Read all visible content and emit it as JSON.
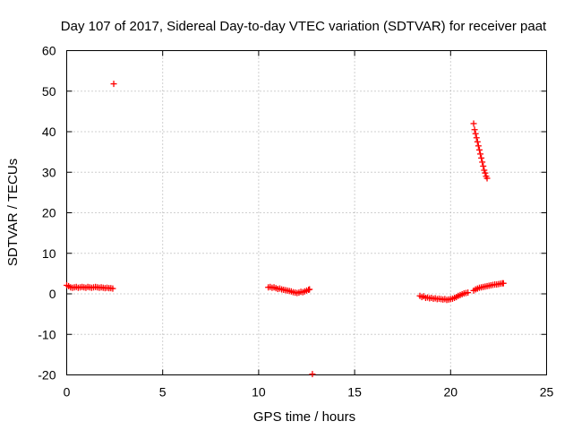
{
  "chart_data": {
    "type": "scatter",
    "title": "Day 107 of 2017, Sidereal Day-to-day VTEC variation (SDTVAR) for receiver paat",
    "xlabel": "GPS time / hours",
    "ylabel": "SDTVAR / TECUs",
    "xlim": [
      0,
      25
    ],
    "ylim": [
      -20,
      60
    ],
    "xticks": [
      "0",
      "5",
      "10",
      "15",
      "20",
      "25"
    ],
    "yticks": [
      "-20",
      "-10",
      "0",
      "10",
      "20",
      "30",
      "40",
      "50",
      "60"
    ],
    "grid": true,
    "marker": "plus",
    "colors": {
      "series": "#ff0000"
    },
    "series": [
      {
        "values": [
          [
            0.0,
            2.1
          ],
          [
            0.1,
            1.9
          ],
          [
            0.2,
            1.6
          ],
          [
            0.3,
            1.5
          ],
          [
            0.4,
            1.6
          ],
          [
            0.5,
            1.7
          ],
          [
            0.6,
            1.5
          ],
          [
            0.7,
            1.6
          ],
          [
            0.8,
            1.7
          ],
          [
            0.9,
            1.6
          ],
          [
            1.0,
            1.5
          ],
          [
            1.1,
            1.7
          ],
          [
            1.2,
            1.6
          ],
          [
            1.3,
            1.5
          ],
          [
            1.4,
            1.6
          ],
          [
            1.5,
            1.7
          ],
          [
            1.6,
            1.6
          ],
          [
            1.7,
            1.5
          ],
          [
            1.8,
            1.6
          ],
          [
            1.9,
            1.5
          ],
          [
            2.0,
            1.4
          ],
          [
            2.1,
            1.5
          ],
          [
            2.2,
            1.4
          ],
          [
            2.3,
            1.4
          ],
          [
            2.4,
            1.3
          ],
          [
            2.45,
            51.8
          ],
          [
            10.5,
            1.6
          ],
          [
            10.6,
            1.7
          ],
          [
            10.7,
            1.5
          ],
          [
            10.8,
            1.6
          ],
          [
            10.9,
            1.4
          ],
          [
            11.0,
            1.2
          ],
          [
            11.1,
            1.3
          ],
          [
            11.2,
            1.1
          ],
          [
            11.3,
            1.0
          ],
          [
            11.4,
            0.9
          ],
          [
            11.5,
            0.8
          ],
          [
            11.6,
            0.7
          ],
          [
            11.7,
            0.6
          ],
          [
            11.8,
            0.4
          ],
          [
            11.9,
            0.3
          ],
          [
            12.0,
            0.2
          ],
          [
            12.1,
            0.3
          ],
          [
            12.2,
            0.5
          ],
          [
            12.3,
            0.4
          ],
          [
            12.4,
            0.6
          ],
          [
            12.5,
            0.8
          ],
          [
            12.6,
            1.0
          ],
          [
            12.65,
            1.1
          ],
          [
            12.8,
            -19.8
          ],
          [
            18.4,
            -0.5
          ],
          [
            18.5,
            -0.8
          ],
          [
            18.6,
            -0.6
          ],
          [
            18.7,
            -1.0
          ],
          [
            18.8,
            -0.9
          ],
          [
            18.9,
            -1.1
          ],
          [
            19.0,
            -1.0
          ],
          [
            19.1,
            -1.2
          ],
          [
            19.2,
            -1.1
          ],
          [
            19.3,
            -1.3
          ],
          [
            19.4,
            -1.2
          ],
          [
            19.5,
            -1.3
          ],
          [
            19.6,
            -1.4
          ],
          [
            19.7,
            -1.3
          ],
          [
            19.8,
            -1.5
          ],
          [
            19.9,
            -1.4
          ],
          [
            20.0,
            -1.3
          ],
          [
            20.1,
            -1.2
          ],
          [
            20.2,
            -1.0
          ],
          [
            20.3,
            -0.8
          ],
          [
            20.4,
            -0.5
          ],
          [
            20.5,
            -0.3
          ],
          [
            20.6,
            -0.1
          ],
          [
            20.7,
            0.1
          ],
          [
            20.8,
            0.2
          ],
          [
            20.9,
            0.3
          ],
          [
            21.2,
            42.0
          ],
          [
            21.25,
            40.5
          ],
          [
            21.3,
            39.5
          ],
          [
            21.35,
            38.5
          ],
          [
            21.4,
            37.5
          ],
          [
            21.45,
            36.5
          ],
          [
            21.5,
            35.5
          ],
          [
            21.55,
            34.5
          ],
          [
            21.6,
            33.5
          ],
          [
            21.65,
            32.5
          ],
          [
            21.7,
            31.5
          ],
          [
            21.75,
            30.5
          ],
          [
            21.8,
            29.8
          ],
          [
            21.85,
            29.0
          ],
          [
            21.9,
            28.5
          ],
          [
            21.2,
            0.8
          ],
          [
            21.3,
            1.1
          ],
          [
            21.4,
            1.3
          ],
          [
            21.5,
            1.5
          ],
          [
            21.6,
            1.6
          ],
          [
            21.7,
            1.7
          ],
          [
            21.8,
            1.8
          ],
          [
            21.9,
            1.9
          ],
          [
            22.0,
            2.0
          ],
          [
            22.1,
            2.1
          ],
          [
            22.2,
            2.2
          ],
          [
            22.3,
            2.3
          ],
          [
            22.4,
            2.3
          ],
          [
            22.5,
            2.4
          ],
          [
            22.6,
            2.5
          ],
          [
            22.7,
            2.6
          ],
          [
            22.75,
            2.6
          ]
        ]
      }
    ]
  }
}
